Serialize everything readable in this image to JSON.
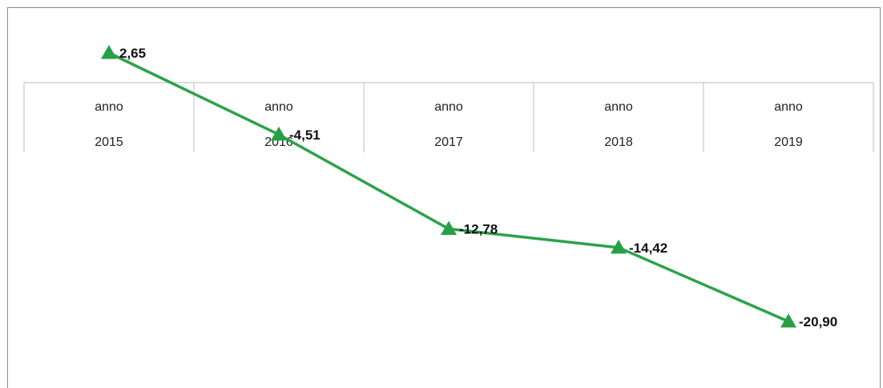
{
  "chart_data": {
    "type": "line",
    "categories": [
      {
        "line1": "anno",
        "line2": "2015"
      },
      {
        "line1": "anno",
        "line2": "2016"
      },
      {
        "line1": "anno",
        "line2": "2017"
      },
      {
        "line1": "anno",
        "line2": "2018"
      },
      {
        "line1": "anno",
        "line2": "2019"
      }
    ],
    "values": [
      2.65,
      -4.51,
      -12.78,
      -14.42,
      -20.9
    ],
    "data_labels": [
      "2,65",
      "-4,51",
      "-12,78",
      "-14,42",
      "-20,90"
    ],
    "marker": "triangle",
    "title": "",
    "xlabel": "",
    "ylabel": "",
    "ylim": [
      -25,
      4
    ],
    "grid": false,
    "legend": "none",
    "colors": {
      "line": "#2ca24a",
      "marker": "#25a046",
      "axis": "#c8c8c8",
      "border": "#8a8a8a"
    }
  }
}
